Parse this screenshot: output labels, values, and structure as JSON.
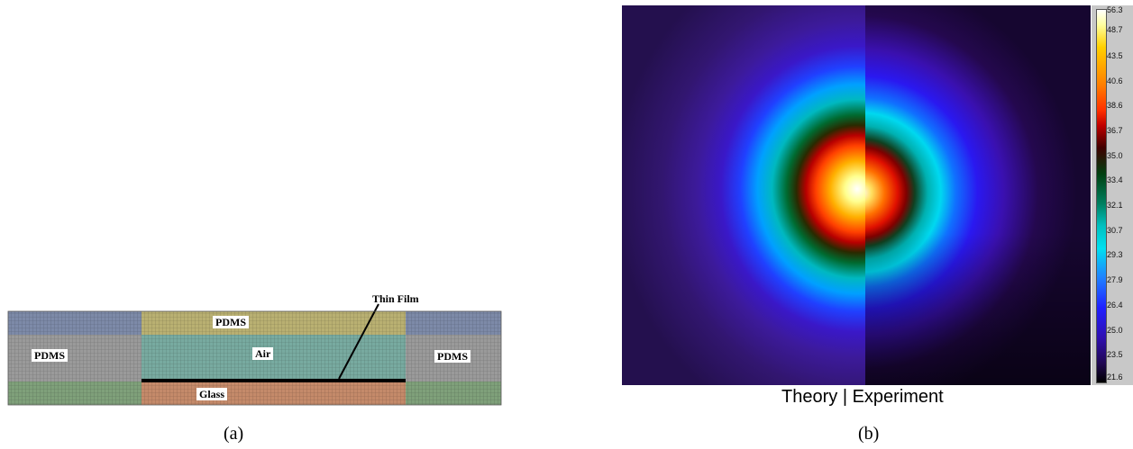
{
  "panel_a": {
    "caption": "(a)",
    "labels": {
      "pdms_top": "PDMS",
      "pdms_left": "PDMS",
      "pdms_right": "PDMS",
      "air": "Air",
      "glass": "Glass",
      "thin_film": "Thin Film"
    },
    "colors": {
      "pdms_side_top": "#7d8aa8",
      "pdms_side_mid": "#9a9a9a",
      "pdms_side_bot": "#7fa07a",
      "pdms_top": "#b9b072",
      "air": "#78aaa0",
      "glass": "#c48a6a",
      "film": "#000000"
    }
  },
  "panel_b": {
    "caption": "(b)",
    "theory_label": "Theory",
    "separator": "|",
    "experiment_label": "Experiment",
    "colorbar_ticks": [
      "56.3",
      "48.7",
      "43.5",
      "40.6",
      "38.6",
      "36.7",
      "35.0",
      "33.4",
      "32.1",
      "30.7",
      "29.3",
      "27.9",
      "26.4",
      "25.0",
      "23.5",
      "21.6"
    ],
    "colormap": [
      "#000000",
      "#2a0a4a",
      "#3a0a8a",
      "#2020ff",
      "#1060ff",
      "#00c8e0",
      "#00a090",
      "#006020",
      "#003000",
      "#d00000",
      "#ff3000",
      "#ff8000",
      "#ffc000",
      "#ffff80",
      "#ffffff"
    ]
  }
}
